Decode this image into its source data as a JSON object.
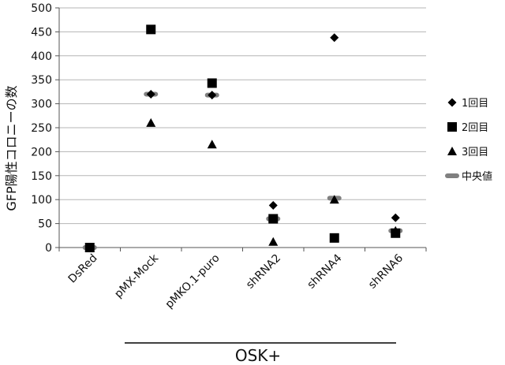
{
  "chart_data": {
    "type": "scatter",
    "categories": [
      "DsRed",
      "pMX-Mock",
      "pMKO.1-puro",
      "shRNA2",
      "shRNA4",
      "shRNA6"
    ],
    "ylabel": "GFP陽性コロニーの数",
    "ylim": [
      0,
      500
    ],
    "yticks": [
      "0",
      "50",
      "100",
      "150",
      "200",
      "250",
      "300",
      "350",
      "400",
      "450",
      "500"
    ],
    "grid": true,
    "legend_position": "right",
    "group_label": "OSK+",
    "series": [
      {
        "name": "1回目",
        "marker": "diamond",
        "color": "#000000",
        "values": [
          0,
          320,
          318,
          88,
          438,
          62
        ]
      },
      {
        "name": "2回目",
        "marker": "square",
        "color": "#000000",
        "values": [
          0,
          455,
          343,
          60,
          20,
          30
        ]
      },
      {
        "name": "3回目",
        "marker": "triangle",
        "color": "#000000",
        "values": [
          0,
          260,
          215,
          12,
          100,
          35
        ]
      },
      {
        "name": "中央値",
        "marker": "dash",
        "color": "#808080",
        "values": [
          0,
          320,
          318,
          60,
          103,
          35
        ]
      }
    ]
  }
}
